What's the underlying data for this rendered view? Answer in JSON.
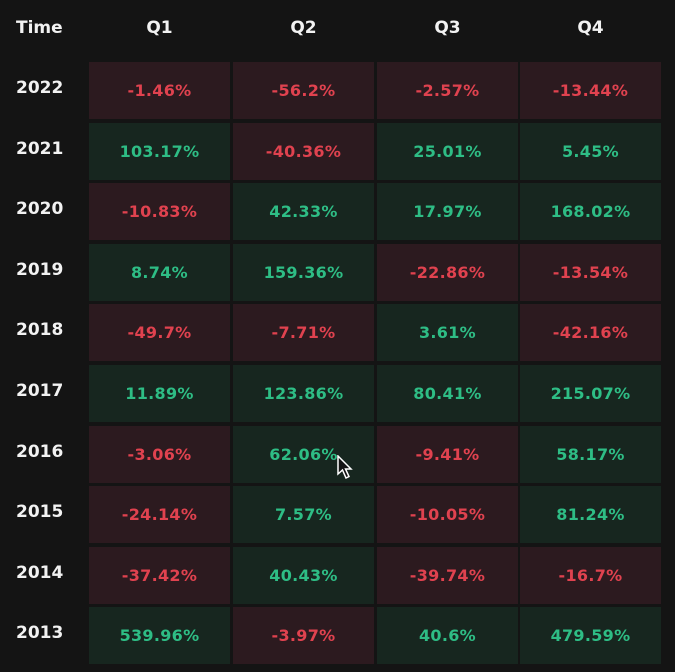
{
  "table": {
    "header": [
      "Time",
      "Q1",
      "Q2",
      "Q3",
      "Q4"
    ],
    "rows": [
      [
        "2022",
        "-1.46%",
        "-56.2%",
        "-2.57%",
        "-13.44%"
      ],
      [
        "2021",
        "103.17%",
        "-40.36%",
        "25.01%",
        "5.45%"
      ],
      [
        "2020",
        "-10.83%",
        "42.33%",
        "17.97%",
        "168.02%"
      ],
      [
        "2019",
        "8.74%",
        "159.36%",
        "-22.86%",
        "-13.54%"
      ],
      [
        "2018",
        "-49.7%",
        "-7.71%",
        "3.61%",
        "-42.16%"
      ],
      [
        "2017",
        "11.89%",
        "123.86%",
        "80.41%",
        "215.07%"
      ],
      [
        "2016",
        "-3.06%",
        "62.06%",
        "-9.41%",
        "58.17%"
      ],
      [
        "2015",
        "-24.14%",
        "7.57%",
        "-10.05%",
        "81.24%"
      ],
      [
        "2014",
        "-37.42%",
        "40.43%",
        "-39.74%",
        "-16.7%"
      ],
      [
        "2013",
        "539.96%",
        "-3.97%",
        "40.6%",
        "479.59%"
      ]
    ]
  }
}
